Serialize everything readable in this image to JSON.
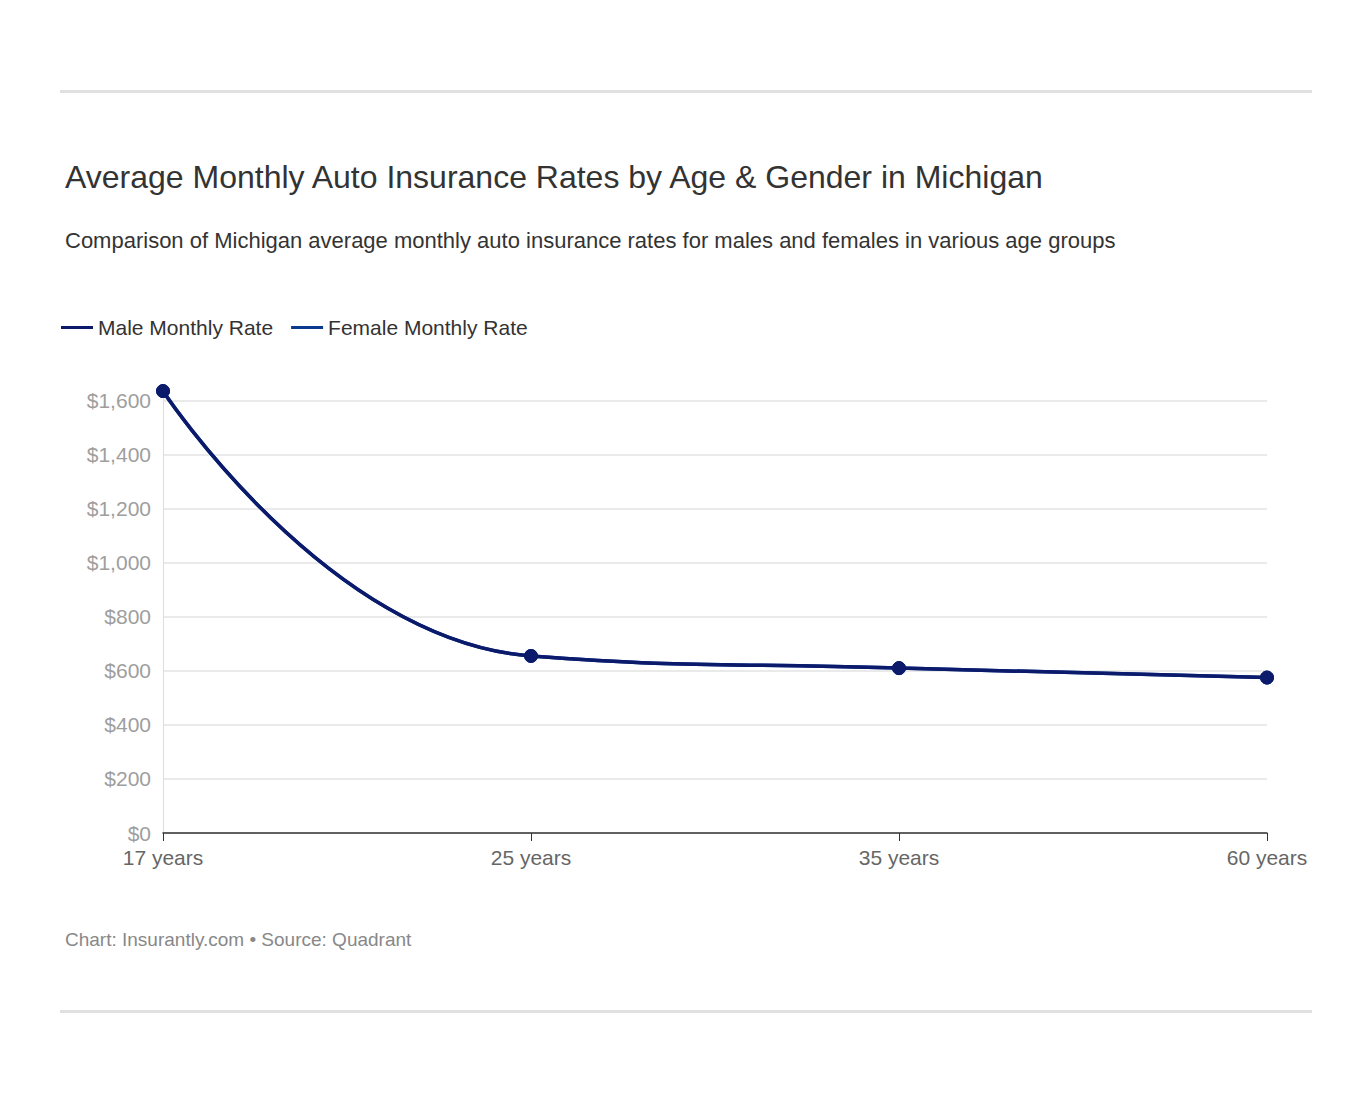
{
  "chart_data": {
    "type": "line",
    "title": "Average Monthly Auto Insurance Rates by Age & Gender in Michigan",
    "subtitle": "Comparison of Michigan average monthly auto insurance rates for males and females in various age groups",
    "source_note": "Chart: Insurantly.com • Source: Quadrant",
    "categories": [
      "17 years",
      "25 years",
      "35 years",
      "60 years"
    ],
    "series": [
      {
        "name": "Male Monthly Rate",
        "color": "#0b1a6b",
        "values": [
          1635,
          655,
          610,
          575
        ]
      },
      {
        "name": "Female Monthly Rate",
        "color": "#0a3a8f",
        "values": [
          1635,
          655,
          610,
          575
        ]
      }
    ],
    "ylim": [
      0,
      1650
    ],
    "yticks": [
      {
        "value": 0,
        "label": "$0"
      },
      {
        "value": 200,
        "label": "$200"
      },
      {
        "value": 400,
        "label": "$400"
      },
      {
        "value": 600,
        "label": "$600"
      },
      {
        "value": 800,
        "label": "$800"
      },
      {
        "value": 1000,
        "label": "$1,000"
      },
      {
        "value": 1200,
        "label": "$1,200"
      },
      {
        "value": 1400,
        "label": "$1,400"
      },
      {
        "value": 1600,
        "label": "$1,600"
      }
    ],
    "grid": true,
    "legend": "top-left",
    "marker": "circle",
    "line_style": "solid"
  }
}
